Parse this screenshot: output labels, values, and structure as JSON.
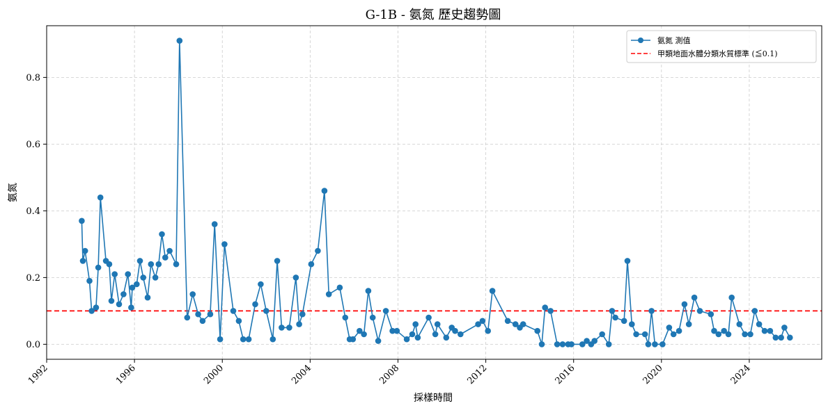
{
  "chart_data": {
    "type": "line",
    "title": "G-1B - 氨氮 歷史趨勢圖",
    "xlabel": "採樣時間",
    "ylabel": "氨氮",
    "x_ticks": [
      "1992",
      "1996",
      "2000",
      "2004",
      "2008",
      "2012",
      "2016",
      "2020",
      "2024"
    ],
    "y_ticks": [
      "0.0",
      "0.2",
      "0.4",
      "0.6",
      "0.8"
    ],
    "xlim": [
      1992.0,
      2027.3
    ],
    "ylim": [
      -0.045,
      0.955
    ],
    "grid": true,
    "legend_position": "top-right",
    "colors": {
      "series": "#1f77b4",
      "threshold": "#ff0000",
      "grid": "#cccccc"
    },
    "series": [
      {
        "name": "氨氮 測值",
        "x": [
          1993.6,
          1993.65,
          1993.75,
          1993.95,
          1994.05,
          1994.25,
          1994.35,
          1994.45,
          1994.7,
          1994.85,
          1994.95,
          1995.1,
          1995.3,
          1995.5,
          1995.7,
          1995.85,
          1995.9,
          1996.1,
          1996.25,
          1996.4,
          1996.6,
          1996.75,
          1996.95,
          1997.1,
          1997.25,
          1997.4,
          1997.6,
          1997.9,
          1998.05,
          1998.4,
          1998.65,
          1998.9,
          1999.1,
          1999.45,
          1999.65,
          1999.9,
          2000.1,
          2000.5,
          2000.75,
          2000.95,
          2001.2,
          2001.5,
          2001.75,
          2002.0,
          2002.3,
          2002.5,
          2002.7,
          2003.05,
          2003.35,
          2003.5,
          2003.65,
          2004.05,
          2004.35,
          2004.65,
          2004.85,
          2005.35,
          2005.6,
          2005.8,
          2005.95,
          2006.25,
          2006.45,
          2006.65,
          2006.85,
          2007.1,
          2007.45,
          2007.75,
          2007.95,
          2008.4,
          2008.65,
          2008.8,
          2008.9,
          2009.4,
          2009.7,
          2009.8,
          2010.2,
          2010.45,
          2010.6,
          2010.85,
          2011.65,
          2011.85,
          2012.1,
          2012.3,
          2013.0,
          2013.35,
          2013.55,
          2013.7,
          2014.35,
          2014.55,
          2014.7,
          2014.95,
          2015.25,
          2015.5,
          2015.75,
          2015.9,
          2016.4,
          2016.6,
          2016.8,
          2016.95,
          2017.3,
          2017.6,
          2017.75,
          2017.9,
          2018.3,
          2018.45,
          2018.65,
          2018.85,
          2019.25,
          2019.4,
          2019.55,
          2019.7,
          2020.05,
          2020.35,
          2020.55,
          2020.8,
          2021.05,
          2021.25,
          2021.5,
          2021.75,
          2022.25,
          2022.4,
          2022.6,
          2022.85,
          2023.05,
          2023.2,
          2023.55,
          2023.8,
          2024.05,
          2024.25,
          2024.45,
          2024.7,
          2024.95,
          2025.2,
          2025.45,
          2025.6,
          2025.85
        ],
        "y": [
          0.37,
          0.25,
          0.28,
          0.19,
          0.1,
          0.11,
          0.23,
          0.44,
          0.25,
          0.24,
          0.13,
          0.21,
          0.12,
          0.15,
          0.21,
          0.11,
          0.17,
          0.18,
          0.25,
          0.2,
          0.14,
          0.24,
          0.2,
          0.24,
          0.33,
          0.26,
          0.28,
          0.24,
          0.91,
          0.08,
          0.15,
          0.09,
          0.07,
          0.09,
          0.36,
          0.015,
          0.3,
          0.1,
          0.07,
          0.015,
          0.015,
          0.12,
          0.18,
          0.1,
          0.015,
          0.25,
          0.05,
          0.05,
          0.2,
          0.06,
          0.09,
          0.24,
          0.28,
          0.46,
          0.15,
          0.17,
          0.08,
          0.015,
          0.015,
          0.04,
          0.03,
          0.16,
          0.08,
          0.01,
          0.1,
          0.04,
          0.04,
          0.015,
          0.03,
          0.06,
          0.02,
          0.08,
          0.03,
          0.06,
          0.02,
          0.05,
          0.04,
          0.03,
          0.06,
          0.07,
          0.04,
          0.16,
          0.07,
          0.06,
          0.05,
          0.06,
          0.04,
          0.0,
          0.11,
          0.1,
          0.0,
          0.0,
          0.0,
          0.0,
          0.0,
          0.01,
          0.0,
          0.01,
          0.03,
          0.0,
          0.1,
          0.08,
          0.07,
          0.25,
          0.06,
          0.03,
          0.03,
          0.0,
          0.1,
          0.0,
          0.0,
          0.05,
          0.03,
          0.04,
          0.12,
          0.06,
          0.14,
          0.1,
          0.09,
          0.04,
          0.03,
          0.04,
          0.03,
          0.14,
          0.06,
          0.03,
          0.03,
          0.1,
          0.06,
          0.04,
          0.04,
          0.02,
          0.02,
          0.05,
          0.02
        ]
      }
    ],
    "threshold": {
      "name": "甲類地面水體分類水質標準 (≦0.1)",
      "y": 0.1
    }
  }
}
